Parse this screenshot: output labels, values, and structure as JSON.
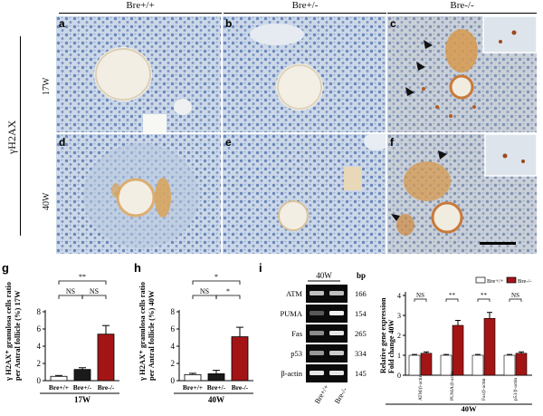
{
  "figure": {
    "genotypes": [
      "Bre+/+",
      "Bre+/-",
      "Bre-/-"
    ],
    "side_label": "γH2AX",
    "rows": [
      "17W",
      "40W"
    ],
    "micro_panels": [
      "a",
      "b",
      "c",
      "d",
      "e",
      "f"
    ],
    "bottom_panels": [
      "g",
      "h",
      "i"
    ]
  },
  "colors": {
    "bar_wt": "#ffffff",
    "bar_het": "#1a1a1a",
    "bar_ko": "#a31515",
    "tissue_bg": "#c9d6e8",
    "nucleus": "#5e7fb6",
    "stain_brown": "#d89a4a"
  },
  "chart_data": [
    {
      "panel": "g",
      "type": "bar",
      "categories": [
        "Bre+/+",
        "Bre+/-",
        "Bre-/-"
      ],
      "values": [
        0.5,
        1.3,
        5.4
      ],
      "errors": [
        0.1,
        0.2,
        1.0
      ],
      "ylabel_lines": [
        "γ H2AX⁺ granulosa cells ratio",
        "per Antral follicle (%) 17W"
      ],
      "xlabel": "17W",
      "ylim": [
        0,
        8
      ],
      "yticks": [
        0,
        2,
        4,
        6,
        8
      ],
      "significance": [
        {
          "label": "**"
        },
        {
          "label": "NS"
        },
        {
          "label": "NS"
        }
      ]
    },
    {
      "panel": "h",
      "type": "bar",
      "categories": [
        "Bre+/+",
        "Bre+/-",
        "Bre-/-"
      ],
      "values": [
        0.7,
        0.8,
        5.1
      ],
      "errors": [
        0.15,
        0.4,
        1.1
      ],
      "ylabel_lines": [
        "γ H2AX⁺ granulosa cells ratio",
        "per Antral follicle (%) 40W"
      ],
      "xlabel": "40W",
      "ylim": [
        0,
        8
      ],
      "yticks": [
        0,
        2,
        4,
        6,
        8
      ],
      "significance": [
        {
          "label": "*"
        },
        {
          "label": "NS"
        },
        {
          "label": "*"
        }
      ]
    },
    {
      "panel": "i",
      "type": "bar",
      "categories": [
        "ATM/β-actin",
        "PUMA/β-actin",
        "Fas/β-actin",
        "p53/β-actin"
      ],
      "series": [
        {
          "name": "Bre+/+",
          "values": [
            1.0,
            1.0,
            1.0,
            1.0
          ],
          "errors": [
            0.04,
            0.04,
            0.04,
            0.04
          ]
        },
        {
          "name": "Bre-/-",
          "values": [
            1.1,
            2.5,
            2.85,
            1.1
          ],
          "errors": [
            0.07,
            0.25,
            0.3,
            0.07
          ]
        }
      ],
      "ylabel_lines": [
        "Relative gene expression",
        "Fold change 40W"
      ],
      "xlabel": "40W",
      "ylim": [
        0,
        4
      ],
      "yticks": [
        0,
        1,
        2,
        3,
        4
      ],
      "significance": [
        "NS",
        "**",
        "**",
        "NS"
      ]
    }
  ],
  "gel": {
    "header": "40W",
    "bp_header": "bp",
    "genes": [
      {
        "name": "ATM",
        "bp": "166"
      },
      {
        "name": "PUMA",
        "bp": "154"
      },
      {
        "name": "Fas",
        "bp": "265"
      },
      {
        "name": "p53",
        "bp": "334"
      },
      {
        "name": "β-actin",
        "bp": "145"
      }
    ],
    "lanes": [
      "Bre+/+",
      "Bre-/-"
    ]
  }
}
